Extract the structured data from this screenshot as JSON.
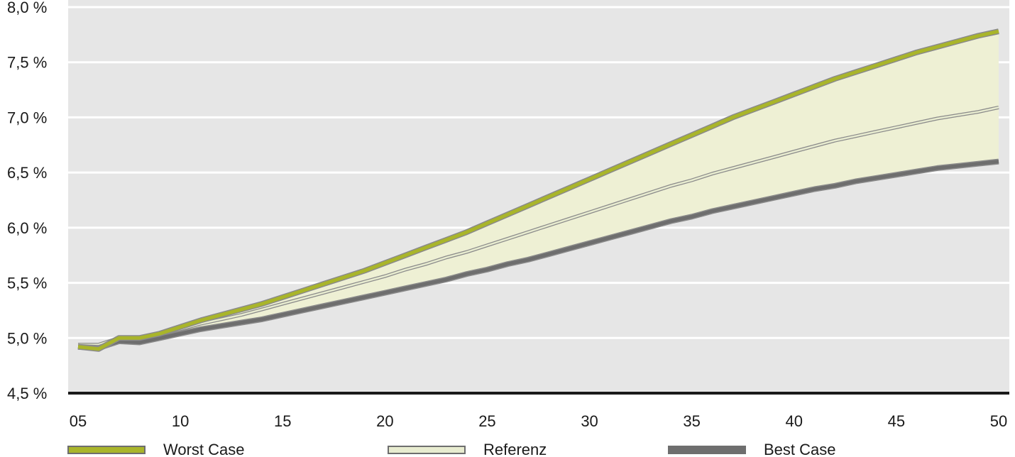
{
  "chart_data": {
    "type": "line",
    "title": "",
    "xlabel": "",
    "ylabel": "",
    "x_tick_labels": [
      "05",
      "10",
      "15",
      "20",
      "25",
      "30",
      "35",
      "40",
      "45",
      "50"
    ],
    "y_tick_labels": [
      "4,5 %",
      "5,0 %",
      "5,5 %",
      "6,0 %",
      "6,5 %",
      "7,0 %",
      "7,5 %",
      "8,0 %"
    ],
    "ylim": [
      4.5,
      8.0
    ],
    "xlim": [
      5,
      50
    ],
    "grid": "horizontal",
    "legend_position": "bottom",
    "x": [
      5,
      6,
      7,
      8,
      9,
      10,
      11,
      12,
      13,
      14,
      15,
      16,
      17,
      18,
      19,
      20,
      21,
      22,
      23,
      24,
      25,
      26,
      27,
      28,
      29,
      30,
      31,
      32,
      33,
      34,
      35,
      36,
      37,
      38,
      39,
      40,
      41,
      42,
      43,
      44,
      45,
      46,
      47,
      48,
      49,
      50
    ],
    "series": [
      {
        "name": "Worst Case",
        "color": "#a9b52a",
        "values": [
          4.92,
          4.9,
          5.0,
          5.0,
          5.04,
          5.1,
          5.16,
          5.21,
          5.26,
          5.31,
          5.37,
          5.43,
          5.49,
          5.55,
          5.61,
          5.68,
          5.75,
          5.82,
          5.89,
          5.96,
          6.04,
          6.12,
          6.2,
          6.28,
          6.36,
          6.44,
          6.52,
          6.6,
          6.68,
          6.76,
          6.84,
          6.92,
          7.0,
          7.07,
          7.14,
          7.21,
          7.28,
          7.35,
          7.41,
          7.47,
          7.53,
          7.59,
          7.64,
          7.69,
          7.74,
          7.78
        ]
      },
      {
        "name": "Referenz",
        "color": "#e8ecd0",
        "values": [
          4.94,
          4.94,
          5.0,
          5.0,
          5.03,
          5.08,
          5.13,
          5.17,
          5.21,
          5.26,
          5.31,
          5.36,
          5.41,
          5.46,
          5.51,
          5.56,
          5.62,
          5.67,
          5.73,
          5.78,
          5.84,
          5.9,
          5.96,
          6.02,
          6.08,
          6.14,
          6.2,
          6.26,
          6.32,
          6.38,
          6.43,
          6.49,
          6.54,
          6.59,
          6.64,
          6.69,
          6.74,
          6.79,
          6.83,
          6.87,
          6.91,
          6.95,
          6.99,
          7.02,
          7.05,
          7.09
        ]
      },
      {
        "name": "Best Case",
        "color": "#6e6e6e",
        "values": [
          4.92,
          4.91,
          4.97,
          4.96,
          5.0,
          5.04,
          5.08,
          5.11,
          5.14,
          5.17,
          5.21,
          5.25,
          5.29,
          5.33,
          5.37,
          5.41,
          5.45,
          5.49,
          5.53,
          5.58,
          5.62,
          5.67,
          5.71,
          5.76,
          5.81,
          5.86,
          5.91,
          5.96,
          6.01,
          6.06,
          6.1,
          6.15,
          6.19,
          6.23,
          6.27,
          6.31,
          6.35,
          6.38,
          6.42,
          6.45,
          6.48,
          6.51,
          6.54,
          6.56,
          6.58,
          6.6
        ]
      }
    ]
  },
  "colors": {
    "plot_background": "#e6e6e6",
    "gridline": "#ffffff",
    "axis": "#1a1a1a",
    "band_fill": "#eef0d4"
  }
}
